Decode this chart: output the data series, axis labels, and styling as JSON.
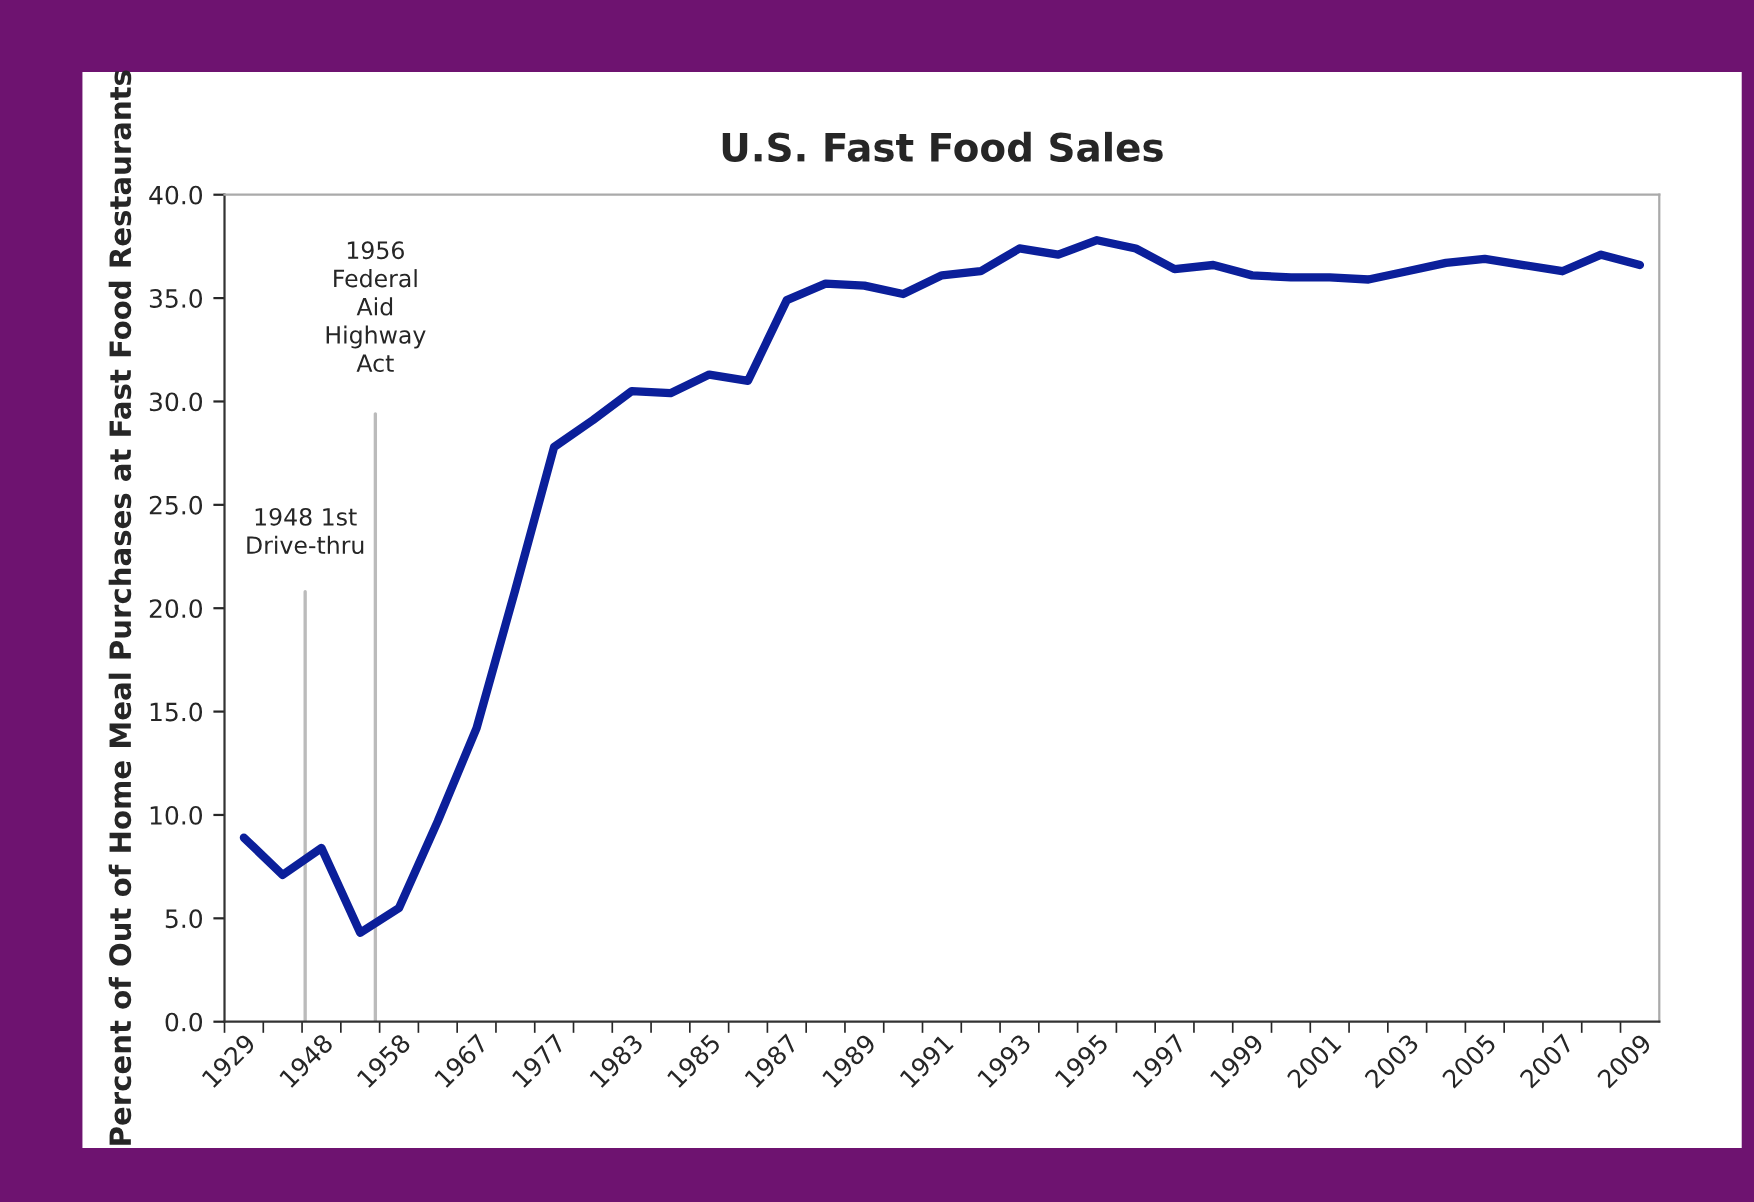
{
  "chart_data": {
    "type": "line",
    "title": "U.S. Fast Food Sales",
    "ylabel": "Percent of Out of Home Meal Purchases at Fast Food Restaurants",
    "categories": [
      "1929",
      null,
      "1948",
      null,
      "1958",
      null,
      "1967",
      null,
      "1977",
      null,
      "1983",
      null,
      "1985",
      null,
      "1987",
      null,
      "1989",
      null,
      "1991",
      null,
      "1993",
      null,
      "1995",
      null,
      "1997",
      null,
      "1999",
      null,
      "2001",
      null,
      "2003",
      null,
      "2005",
      null,
      "2007",
      null,
      "2009"
    ],
    "series": [
      {
        "color": "#0b1f9a",
        "values": [
          8.9,
          7.1,
          8.4,
          4.3,
          5.5,
          9.7,
          14.2,
          20.9,
          27.8,
          29.1,
          30.5,
          30.4,
          31.3,
          31.0,
          34.9,
          35.7,
          35.6,
          35.2,
          36.1,
          36.3,
          37.4,
          37.1,
          37.8,
          37.4,
          36.4,
          36.6,
          36.1,
          36.0,
          36.0,
          35.9,
          36.3,
          36.7,
          36.9,
          36.6,
          36.3,
          37.1,
          36.6
        ]
      }
    ],
    "ylim": [
      0,
      40
    ],
    "yticks": [
      {
        "value": 0,
        "label": "0.0"
      },
      {
        "value": 5,
        "label": "5.0"
      },
      {
        "value": 10,
        "label": "10.0"
      },
      {
        "value": 15,
        "label": "15.0"
      },
      {
        "value": 20,
        "label": "20.0"
      },
      {
        "value": 25,
        "label": "25.0"
      },
      {
        "value": 30,
        "label": "30.0"
      },
      {
        "value": 35,
        "label": "35.0"
      },
      {
        "value": 40,
        "label": "40.0"
      }
    ],
    "annotations": [
      "1948 1st\nDrive-thru",
      "1956\nFederal\nAid\nHighway\nAct"
    ],
    "marker": "none",
    "line_style": "solid",
    "grid": false,
    "legend": false
  }
}
